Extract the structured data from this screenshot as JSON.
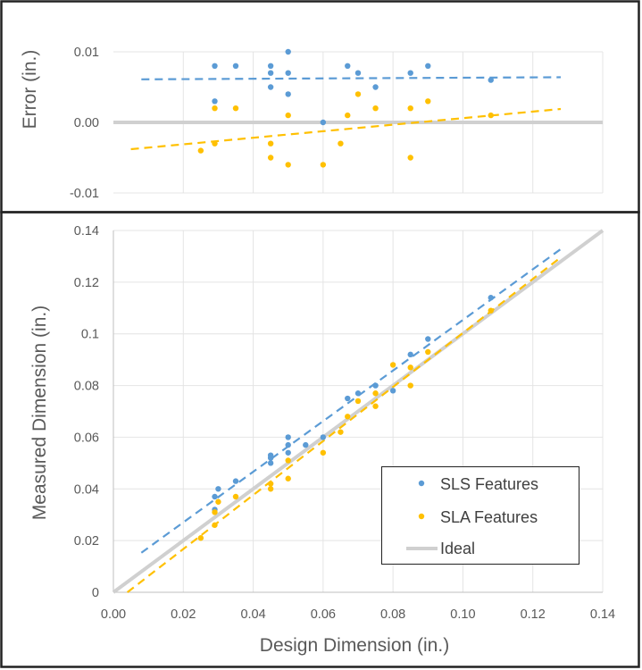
{
  "colors": {
    "sls": "#5B9BD5",
    "sla": "#FFC000",
    "ideal": "#D0D0D0",
    "grid": "#E4E4E4",
    "frame": "#222222"
  },
  "chart_data": [
    {
      "type": "scatter",
      "ylabel": "Error (in.)",
      "xlabel": "",
      "xlim": [
        0,
        0.14
      ],
      "ylim": [
        -0.01,
        0.01
      ],
      "y_ticks": [
        "0.01",
        "0.00",
        "-0.01"
      ],
      "grid": true,
      "series": [
        {
          "name": "SLS Features",
          "x": [
            0.029,
            0.029,
            0.035,
            0.045,
            0.045,
            0.045,
            0.05,
            0.05,
            0.05,
            0.06,
            0.067,
            0.07,
            0.075,
            0.085,
            0.09,
            0.108
          ],
          "y": [
            0.008,
            0.003,
            0.008,
            0.008,
            0.007,
            0.005,
            0.01,
            0.007,
            0.004,
            0.0,
            0.008,
            0.007,
            0.005,
            0.007,
            0.008,
            0.006
          ]
        },
        {
          "name": "SLA Features",
          "x": [
            0.025,
            0.029,
            0.029,
            0.035,
            0.045,
            0.045,
            0.05,
            0.05,
            0.06,
            0.065,
            0.067,
            0.07,
            0.075,
            0.085,
            0.085,
            0.09,
            0.108
          ],
          "y": [
            -0.004,
            0.002,
            -0.003,
            0.002,
            -0.003,
            -0.005,
            0.001,
            -0.006,
            -0.006,
            -0.003,
            0.001,
            0.004,
            0.002,
            0.002,
            -0.005,
            0.003,
            0.001
          ]
        }
      ],
      "trendlines": [
        {
          "series": "SLS Features",
          "x": [
            0.008,
            0.128
          ],
          "y": [
            0.0061,
            0.0064
          ]
        },
        {
          "series": "SLA Features",
          "x": [
            0.005,
            0.128
          ],
          "y": [
            -0.0038,
            0.0019
          ]
        }
      ],
      "reference_line": {
        "y": 0.0
      }
    },
    {
      "type": "scatter",
      "xlabel": "Design Dimension (in.)",
      "ylabel": "Measured Dimension (in.)",
      "xlim": [
        0,
        0.14
      ],
      "ylim": [
        0,
        0.14
      ],
      "x_ticks": [
        "0.00",
        "0.02",
        "0.04",
        "0.06",
        "0.08",
        "0.10",
        "0.12",
        "0.14"
      ],
      "y_ticks": [
        "0",
        "0.02",
        "0.04",
        "0.06",
        "0.08",
        "0.1",
        "0.12",
        "0.14"
      ],
      "grid": true,
      "legend_position": "bottom-right",
      "legend": [
        "SLS Features",
        "SLA Features",
        "Ideal"
      ],
      "series": [
        {
          "name": "SLS Features",
          "x": [
            0.029,
            0.029,
            0.03,
            0.035,
            0.045,
            0.045,
            0.045,
            0.05,
            0.05,
            0.05,
            0.055,
            0.06,
            0.067,
            0.07,
            0.075,
            0.08,
            0.085,
            0.09,
            0.108
          ],
          "y": [
            0.032,
            0.037,
            0.04,
            0.043,
            0.05,
            0.052,
            0.053,
            0.054,
            0.057,
            0.06,
            0.057,
            0.06,
            0.075,
            0.077,
            0.08,
            0.078,
            0.092,
            0.098,
            0.114
          ]
        },
        {
          "name": "SLA Features",
          "x": [
            0.025,
            0.029,
            0.029,
            0.03,
            0.035,
            0.045,
            0.045,
            0.05,
            0.05,
            0.06,
            0.065,
            0.067,
            0.07,
            0.075,
            0.075,
            0.08,
            0.085,
            0.085,
            0.09,
            0.108
          ],
          "y": [
            0.021,
            0.026,
            0.031,
            0.035,
            0.037,
            0.04,
            0.042,
            0.044,
            0.051,
            0.054,
            0.062,
            0.068,
            0.074,
            0.072,
            0.077,
            0.088,
            0.08,
            0.087,
            0.093,
            0.109
          ]
        }
      ],
      "trendlines": [
        {
          "series": "SLS Features",
          "x": [
            0.008,
            0.128
          ],
          "y": [
            0.0153,
            0.1328
          ]
        },
        {
          "series": "SLA Features",
          "x": [
            0.004,
            0.128
          ],
          "y": [
            0.0,
            0.1296
          ]
        }
      ],
      "ideal_line": {
        "x": [
          0,
          0.14
        ],
        "y": [
          0,
          0.14
        ]
      }
    }
  ]
}
